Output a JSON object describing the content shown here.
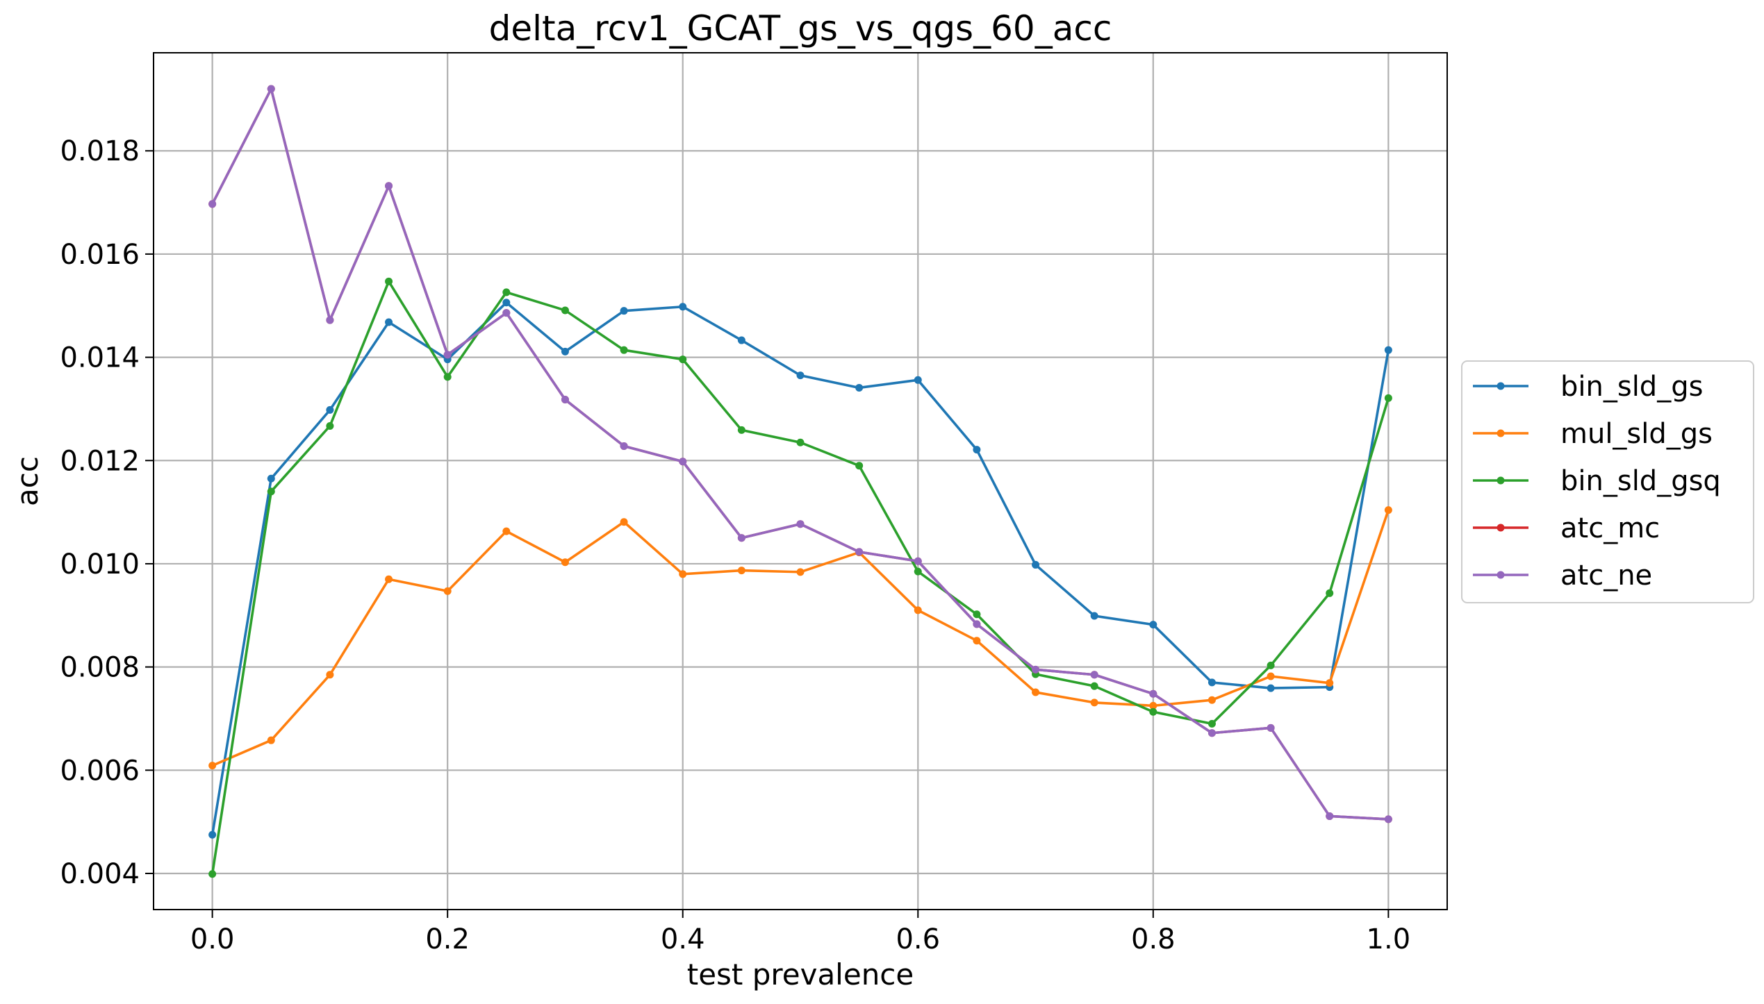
{
  "chart_data": {
    "type": "line",
    "title": "delta_rcv1_GCAT_gs_vs_qgs_60_acc",
    "xlabel": "test prevalence",
    "ylabel": "acc",
    "xlim": [
      -0.05,
      1.05
    ],
    "ylim": [
      0.0033,
      0.0199
    ],
    "x_ticks": [
      0.0,
      0.2,
      0.4,
      0.6,
      0.8,
      1.0
    ],
    "x_tick_labels": [
      "0.0",
      "0.2",
      "0.4",
      "0.6",
      "0.8",
      "1.0"
    ],
    "y_ticks": [
      0.004,
      0.006,
      0.008,
      0.01,
      0.012,
      0.014,
      0.016,
      0.018
    ],
    "y_tick_labels": [
      "0.004",
      "0.006",
      "0.008",
      "0.010",
      "0.012",
      "0.014",
      "0.016",
      "0.018"
    ],
    "grid": true,
    "legend_position": "right, outside plot",
    "x": [
      0.0,
      0.05,
      0.1,
      0.15,
      0.2,
      0.25,
      0.3,
      0.35,
      0.4,
      0.45,
      0.5,
      0.55,
      0.6,
      0.65,
      0.7,
      0.75,
      0.8,
      0.85,
      0.9,
      0.95,
      1.0
    ],
    "series": [
      {
        "name": "bin_sld_gs",
        "color": "#1f77b4",
        "values": [
          0.00475,
          0.01165,
          0.01298,
          0.01468,
          0.01396,
          0.01506,
          0.01411,
          0.0149,
          0.01498,
          0.01433,
          0.01365,
          0.01341,
          0.01356,
          0.01221,
          0.00998,
          0.00899,
          0.00882,
          0.0077,
          0.00759,
          0.00761,
          0.01414
        ]
      },
      {
        "name": "mul_sld_gs",
        "color": "#ff7f0e",
        "values": [
          0.00609,
          0.00658,
          0.00785,
          0.0097,
          0.00947,
          0.01063,
          0.01003,
          0.01081,
          0.0098,
          0.00987,
          0.00984,
          0.01022,
          0.0091,
          0.00851,
          0.00751,
          0.00731,
          0.00725,
          0.00736,
          0.00782,
          0.00769,
          0.01104
        ]
      },
      {
        "name": "bin_sld_gsq",
        "color": "#2ca02c",
        "values": [
          0.00399,
          0.0114,
          0.01267,
          0.01547,
          0.01362,
          0.01526,
          0.01491,
          0.01414,
          0.01396,
          0.01259,
          0.01235,
          0.0119,
          0.00985,
          0.00902,
          0.00786,
          0.00763,
          0.00713,
          0.0069,
          0.00803,
          0.00943,
          0.01321
        ]
      },
      {
        "name": "atc_mc",
        "color": "#d62728",
        "values": [
          0.01697,
          0.0192,
          0.01472,
          0.01732,
          0.01405,
          0.01486,
          0.01318,
          0.01228,
          0.01198,
          0.0105,
          0.01077,
          0.01023,
          0.01005,
          0.00883,
          0.00795,
          0.00785,
          0.00748,
          0.00672,
          0.00682,
          0.00511,
          0.00505
        ]
      },
      {
        "name": "atc_ne",
        "color": "#9467bd",
        "values": [
          0.01697,
          0.0192,
          0.01472,
          0.01732,
          0.01405,
          0.01486,
          0.01318,
          0.01228,
          0.01198,
          0.0105,
          0.01077,
          0.01023,
          0.01005,
          0.00883,
          0.00795,
          0.00785,
          0.00748,
          0.00672,
          0.00682,
          0.00511,
          0.00505
        ]
      }
    ]
  }
}
